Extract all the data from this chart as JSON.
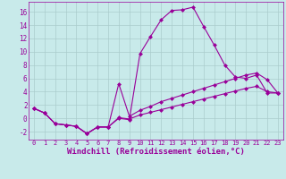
{
  "background_color": "#c8eaea",
  "grid_color": "#aacccc",
  "line_color": "#990099",
  "marker": "D",
  "marker_size": 2.5,
  "xlabel": "Windchill (Refroidissement éolien,°C)",
  "xlabel_fontsize": 6.5,
  "xtick_fontsize": 5,
  "ytick_fontsize": 5.5,
  "xlim": [
    -0.5,
    23.5
  ],
  "ylim": [
    -3.2,
    17.5
  ],
  "yticks": [
    -2,
    0,
    2,
    4,
    6,
    8,
    10,
    12,
    14,
    16
  ],
  "xticks": [
    0,
    1,
    2,
    3,
    4,
    5,
    6,
    7,
    8,
    9,
    10,
    11,
    12,
    13,
    14,
    15,
    16,
    17,
    18,
    19,
    20,
    21,
    22,
    23
  ],
  "line1_x": [
    0,
    1,
    2,
    3,
    4,
    5,
    6,
    7,
    8,
    9,
    10,
    11,
    12,
    13,
    14,
    15,
    16,
    17,
    18,
    19,
    20,
    21,
    22,
    23
  ],
  "line1_y": [
    1.5,
    0.8,
    -0.8,
    -1.0,
    -1.2,
    -2.3,
    -1.3,
    -1.3,
    0.0,
    -0.2,
    9.7,
    12.3,
    14.8,
    16.2,
    16.3,
    16.7,
    13.8,
    11.0,
    8.0,
    6.2,
    6.0,
    6.5,
    3.8,
    3.8
  ],
  "line2_x": [
    0,
    1,
    2,
    3,
    4,
    5,
    6,
    7,
    8,
    9,
    10,
    11,
    12,
    13,
    14,
    15,
    16,
    17,
    18,
    19,
    20,
    21,
    22,
    23
  ],
  "line2_y": [
    1.5,
    0.8,
    -0.8,
    -1.0,
    -1.2,
    -2.3,
    -1.3,
    -1.3,
    5.2,
    0.3,
    1.2,
    1.8,
    2.5,
    3.0,
    3.5,
    4.0,
    4.5,
    5.0,
    5.5,
    6.0,
    6.5,
    6.8,
    5.8,
    3.8
  ],
  "line3_x": [
    0,
    1,
    2,
    3,
    4,
    5,
    6,
    7,
    8,
    9,
    10,
    11,
    12,
    13,
    14,
    15,
    16,
    17,
    18,
    19,
    20,
    21,
    22,
    23
  ],
  "line3_y": [
    1.5,
    0.8,
    -0.8,
    -1.0,
    -1.2,
    -2.3,
    -1.3,
    -1.3,
    0.1,
    -0.1,
    0.5,
    0.9,
    1.3,
    1.7,
    2.1,
    2.5,
    2.9,
    3.3,
    3.7,
    4.1,
    4.5,
    4.8,
    4.0,
    3.8
  ]
}
